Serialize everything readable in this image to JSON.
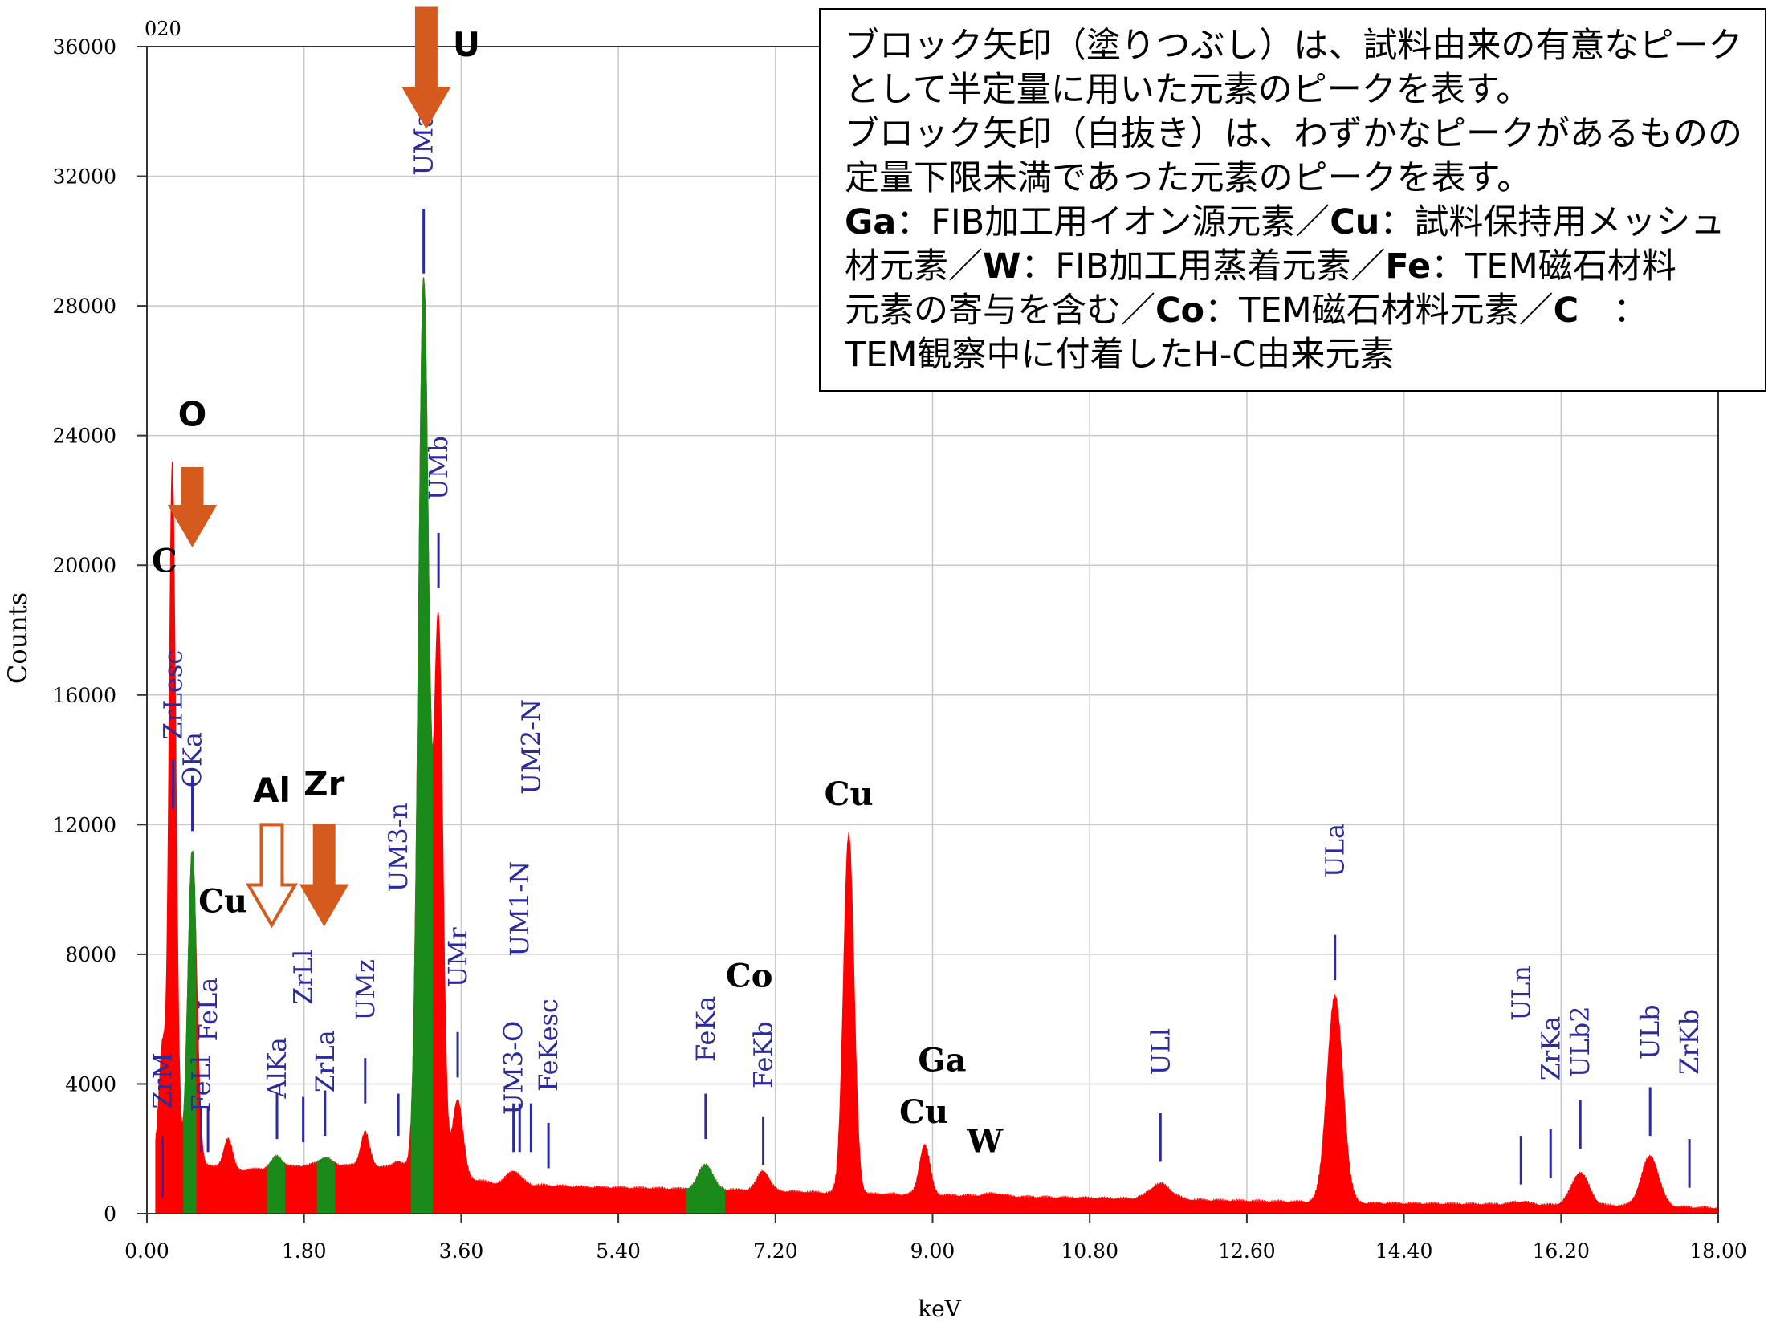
{
  "chart_data": {
    "type": "area",
    "title": "",
    "panel_label": "020",
    "xlabel": "keV",
    "ylabel": "Counts",
    "xlim": [
      0,
      18
    ],
    "ylim": [
      0,
      36000
    ],
    "x_ticks": [
      "0.00",
      "1.80",
      "3.60",
      "5.40",
      "7.20",
      "9.00",
      "10.80",
      "12.60",
      "14.40",
      "16.20",
      "18.00"
    ],
    "y_ticks": [
      "0",
      "4000",
      "8000",
      "12000",
      "16000",
      "20000",
      "24000",
      "28000",
      "32000",
      "36000"
    ],
    "grid": true,
    "spectrum": {
      "baseline": [
        [
          0.1,
          1800
        ],
        [
          1.0,
          1300
        ],
        [
          2.0,
          1500
        ],
        [
          3.0,
          1400
        ],
        [
          4.0,
          900
        ],
        [
          5.0,
          800
        ],
        [
          6.0,
          750
        ],
        [
          7.0,
          700
        ],
        [
          8.0,
          600
        ],
        [
          9.0,
          550
        ],
        [
          10.0,
          500
        ],
        [
          11.0,
          450
        ],
        [
          12.0,
          400
        ],
        [
          13.0,
          350
        ],
        [
          14.0,
          300
        ],
        [
          15.0,
          280
        ],
        [
          16.0,
          250
        ],
        [
          17.0,
          220
        ],
        [
          18.0,
          150
        ]
      ],
      "peaks": [
        {
          "center": 0.18,
          "height": 5200,
          "width": 0.04
        },
        {
          "center": 0.28,
          "height": 9200,
          "width": 0.03
        },
        {
          "center": 0.3,
          "height": 16400,
          "width": 0.04
        },
        {
          "center": 0.52,
          "height": 11200,
          "width": 0.05
        },
        {
          "center": 0.93,
          "height": 2300,
          "width": 0.05
        },
        {
          "center": 1.49,
          "height": 1750,
          "width": 0.06
        },
        {
          "center": 2.04,
          "height": 1700,
          "width": 0.07
        },
        {
          "center": 2.5,
          "height": 2500,
          "width": 0.05
        },
        {
          "center": 2.88,
          "height": 1600,
          "width": 0.05
        },
        {
          "center": 3.17,
          "height": 28800,
          "width": 0.06
        },
        {
          "center": 3.34,
          "height": 18000,
          "width": 0.05
        },
        {
          "center": 3.56,
          "height": 3500,
          "width": 0.06
        },
        {
          "center": 4.2,
          "height": 1300,
          "width": 0.08
        },
        {
          "center": 6.4,
          "height": 1500,
          "width": 0.08
        },
        {
          "center": 7.06,
          "height": 1300,
          "width": 0.07
        },
        {
          "center": 8.04,
          "height": 11700,
          "width": 0.06
        },
        {
          "center": 8.91,
          "height": 2100,
          "width": 0.06
        },
        {
          "center": 9.7,
          "height": 600,
          "width": 0.1
        },
        {
          "center": 11.61,
          "height": 900,
          "width": 0.12
        },
        {
          "center": 13.61,
          "height": 6700,
          "width": 0.09
        },
        {
          "center": 15.74,
          "height": 350,
          "width": 0.1
        },
        {
          "center": 16.42,
          "height": 1250,
          "width": 0.1
        },
        {
          "center": 17.22,
          "height": 1750,
          "width": 0.1
        }
      ],
      "green_ranges": [
        [
          0.42,
          0.56
        ],
        [
          1.38,
          1.58
        ],
        [
          1.95,
          2.15
        ],
        [
          3.03,
          3.27
        ],
        [
          6.18,
          6.62
        ]
      ],
      "colors": {
        "spectrum": "#ff0000",
        "selected": "#1a8a1a",
        "marker": "#2b2b9e",
        "arrow": "#d45a1e",
        "grid": "#c8c8c8"
      }
    },
    "line_markers": [
      {
        "x": 0.18,
        "top": 2400,
        "bottom": 500,
        "label": "ZrM",
        "label_y": 4100
      },
      {
        "x": 0.3,
        "top": 14000,
        "bottom": 12500,
        "label": "ZrLesc",
        "label_y": 16000
      },
      {
        "x": 0.52,
        "top": 13500,
        "bottom": 11800,
        "label": "OKa",
        "label_y": 14000
      },
      {
        "x": 0.62,
        "top": 3300,
        "bottom": 1900,
        "label": "FeLl",
        "label_y": 4000
      },
      {
        "x": 0.7,
        "top": 3300,
        "bottom": 1900,
        "label": "FeLa",
        "label_y": 6300
      },
      {
        "x": 1.49,
        "top": 3700,
        "bottom": 2300,
        "label": "AlKa",
        "label_y": 4500
      },
      {
        "x": 1.79,
        "top": 3600,
        "bottom": 2200,
        "label": "ZrLl",
        "label_y": 7300
      },
      {
        "x": 2.04,
        "top": 3800,
        "bottom": 2400,
        "label": "ZrLa",
        "label_y": 4700
      },
      {
        "x": 2.5,
        "top": 4800,
        "bottom": 3400,
        "label": "UMz",
        "label_y": 6900
      },
      {
        "x": 2.88,
        "top": 3700,
        "bottom": 2400,
        "label": "UM3-n",
        "label_y": 11300
      },
      {
        "x": 3.17,
        "top": 31000,
        "bottom": 29000,
        "label": "UMa",
        "label_y": 33000
      },
      {
        "x": 3.34,
        "top": 21000,
        "bottom": 19300,
        "label": "UMb",
        "label_y": 23000
      },
      {
        "x": 3.56,
        "top": 5600,
        "bottom": 4200,
        "label": "UMr",
        "label_y": 7900
      },
      {
        "x": 4.2,
        "top": 3400,
        "bottom": 1900,
        "label": "UM3-O",
        "label_y": 4500
      },
      {
        "x": 4.27,
        "top": 3400,
        "bottom": 1900,
        "label": "UM1-N",
        "label_y": 9400
      },
      {
        "x": 4.4,
        "top": 3400,
        "bottom": 1900,
        "label": "UM2-N",
        "label_y": 14400
      },
      {
        "x": 4.6,
        "top": 2800,
        "bottom": 1400,
        "label": "FeKesc",
        "label_y": 5200
      },
      {
        "x": 6.4,
        "top": 3700,
        "bottom": 2300,
        "label": "FeKa",
        "label_y": 5700
      },
      {
        "x": 7.06,
        "top": 3000,
        "bottom": 1500,
        "label": "FeKb",
        "label_y": 4900
      },
      {
        "x": 11.61,
        "top": 3100,
        "bottom": 1600,
        "label": "ULl",
        "label_y": 5000
      },
      {
        "x": 13.61,
        "top": 8600,
        "bottom": 7200,
        "label": "ULa",
        "label_y": 11200
      },
      {
        "x": 15.74,
        "top": 2400,
        "bottom": 900,
        "label": "ULn",
        "label_y": 6800
      },
      {
        "x": 16.08,
        "top": 2600,
        "bottom": 1100,
        "label": "ZrKa",
        "label_y": 5100
      },
      {
        "x": 16.42,
        "top": 3500,
        "bottom": 2000,
        "label": "ULb2",
        "label_y": 5300
      },
      {
        "x": 17.22,
        "top": 3900,
        "bottom": 2400,
        "label": "ULb",
        "label_y": 5600
      },
      {
        "x": 17.67,
        "top": 2300,
        "bottom": 800,
        "label": "ZrKb",
        "label_y": 5300
      }
    ],
    "arrows": [
      {
        "x": 3.2,
        "y_top": 37200,
        "y_bottom": 33500,
        "style": "filled",
        "label": "U",
        "label_x": 3.66,
        "label_y": 35700
      },
      {
        "x": 0.52,
        "y_top": 23000,
        "y_bottom": 20600,
        "style": "filled",
        "label": "O",
        "label_x": 0.52,
        "label_y": 24300
      },
      {
        "x": 1.43,
        "y_top": 12000,
        "y_bottom": 8900,
        "style": "hollow",
        "label": "Al",
        "label_x": 1.43,
        "label_y": 12700
      },
      {
        "x": 2.03,
        "y_top": 12000,
        "y_bottom": 8900,
        "style": "filled",
        "label": "Zr",
        "label_x": 2.03,
        "label_y": 12900
      }
    ],
    "element_labels": [
      {
        "text": "C",
        "x": 0.2,
        "y": 19800,
        "weight": "bold"
      },
      {
        "text": "Cu",
        "x": 0.87,
        "y": 9300,
        "weight": "bold"
      },
      {
        "text": "Cu",
        "x": 8.04,
        "y": 12600,
        "weight": "bold"
      },
      {
        "text": "Co",
        "x": 6.9,
        "y": 7000,
        "weight": "bold"
      },
      {
        "text": "Ga",
        "x": 9.11,
        "y": 4400,
        "weight": "bold"
      },
      {
        "text": "Cu",
        "x": 8.9,
        "y": 2800,
        "weight": "bold"
      },
      {
        "text": "W",
        "x": 9.6,
        "y": 1900,
        "weight": "bold"
      }
    ]
  },
  "legend": {
    "line1": "ブロック矢印（塗りつぶし）は、試料由来の有意なピーク",
    "line2": "として半定量に用いた元素のピークを表す。",
    "line3": "ブロック矢印（白抜き）は、わずかなピークがあるものの",
    "line4": "定量下限未満であった元素のピークを表す。",
    "ga": "Ga",
    "ga_desc": "：FIB加工用イオン源元素／",
    "cu": "Cu",
    "cu_desc": "：試料保持用メッシュ",
    "line6_pre": "材元素／",
    "w": "W",
    "w_desc": "：FIB加工用蒸着元素／",
    "fe": "Fe",
    "fe_desc": "：TEM磁石材料",
    "line7_pre": "元素の寄与を含む／",
    "co": "Co",
    "co_desc": "：TEM磁石材料元素／",
    "c": "C",
    "c_desc": "　：",
    "line8": "TEM観察中に付着したH-C由来元素"
  }
}
